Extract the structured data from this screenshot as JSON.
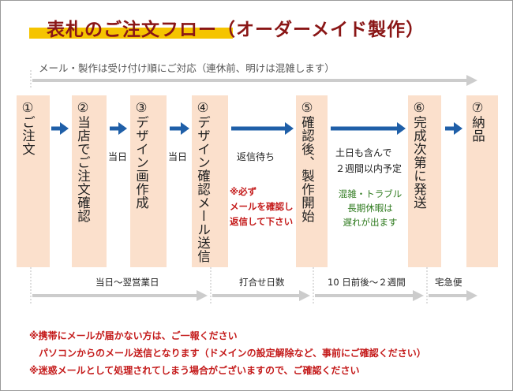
{
  "header": {
    "title": "表札のご注文フロー（オーダーメイド製作）",
    "subtitle": "メール・製作は受け付け順にご対応（連休前、明けは混雑します）"
  },
  "steps": [
    {
      "label": "①ご注文"
    },
    {
      "label": "②当店でご注文確認"
    },
    {
      "label": "③デザイン画作成"
    },
    {
      "label": "④デザイン確認メール送信"
    },
    {
      "label": "⑤確認後、製作開始"
    },
    {
      "label": "⑥完成次第に発送"
    },
    {
      "label": "⑦納品"
    }
  ],
  "between": {
    "day1": "当日",
    "day2": "当日",
    "wait": "返信待ち",
    "reply_note": [
      "※必ず",
      "メールを確認し",
      "返信して下さい"
    ],
    "production": [
      "土日も含んで",
      "２週間以内予定"
    ],
    "delay_note": [
      "混雑・トラブル",
      "長期休暇は",
      "遅れが出ます"
    ]
  },
  "timeline": {
    "seg1": "当日〜翌営業日",
    "seg2": "打合せ日数",
    "seg3": "10 日前後〜２週間",
    "seg4": "宅急便"
  },
  "notes": {
    "line1": "※携帯にメールが届かない方は、ご一報ください",
    "line2": "パソコンからのメール送信となります（ドメインの設定解除など、事前にご確認ください）",
    "line3": "※迷惑メールとして処理されてしまう場合がございますので、ご確認ください"
  },
  "colors": {
    "title": "#8a1616",
    "highlight": "#f5c400",
    "box": "#fbe0cc",
    "arrow_blue": "#1f5fa8",
    "arrow_gray": "#cccccc",
    "note_red": "#c41a1a",
    "note_green": "#2e7a1e"
  }
}
